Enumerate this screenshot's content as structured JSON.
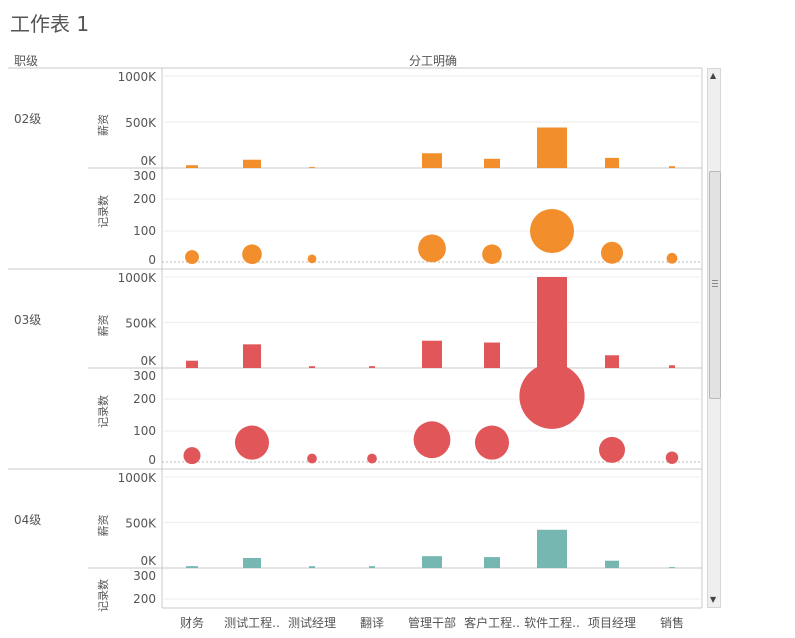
{
  "sheet": {
    "title": "工作表 1"
  },
  "headers": {
    "row_dim": "职级",
    "col_dim": "分工明确"
  },
  "colors": {
    "02级": "#f28e2b",
    "03级": "#e15759",
    "04级": "#76b7b2"
  },
  "chart_data": {
    "type": "bar",
    "categories": [
      "财务",
      "测试工程..",
      "测试经理",
      "翻译",
      "管理干部",
      "客户工程..",
      "软件工程..",
      "项目经理",
      "销售"
    ],
    "rows": [
      "02级",
      "03级",
      "04级"
    ],
    "measures": [
      {
        "name": "薪资",
        "mark": "bar",
        "axis_ticks": [
          "1000K",
          "500K",
          "0K"
        ],
        "range": [
          0,
          1000000
        ]
      },
      {
        "name": "记录数",
        "mark": "circle",
        "axis_ticks": [
          "300",
          "200",
          "100",
          "0"
        ],
        "range": [
          0,
          300
        ]
      }
    ],
    "salary": {
      "02级": [
        30000,
        90000,
        10000,
        0,
        160000,
        100000,
        440000,
        110000,
        20000
      ],
      "03级": [
        80000,
        260000,
        20000,
        20000,
        300000,
        280000,
        1000000,
        140000,
        30000
      ],
      "04级": [
        20000,
        110000,
        20000,
        20000,
        130000,
        120000,
        420000,
        80000,
        10000
      ]
    },
    "count": {
      "02级": [
        10,
        20,
        4,
        0,
        40,
        20,
        100,
        25,
        6
      ],
      "03级": [
        15,
        60,
        5,
        5,
        70,
        60,
        220,
        35,
        8
      ],
      "04级": [
        null,
        null,
        null,
        null,
        null,
        null,
        null,
        null,
        null
      ]
    }
  }
}
